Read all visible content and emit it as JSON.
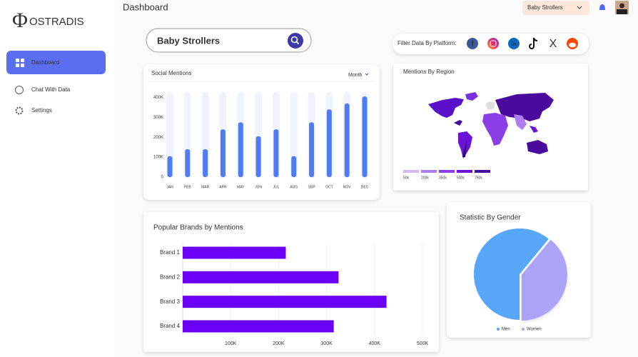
{
  "app": {
    "logo_symbol": "Φ",
    "logo_text": "OSTRADIS",
    "nav": [
      "Dashboard",
      "Chat With Data",
      "Settings"
    ],
    "header_title": "Dashboard",
    "product_select": "Baby Strollers",
    "search_query": "Baby Strollers",
    "filter_label": "Filter Data By Platform:",
    "platforms": [
      "f",
      "in",
      "X"
    ]
  },
  "chart_data": [
    {
      "type": "bar",
      "title": "Social Mentions",
      "period": "Month",
      "categories": [
        "JAN",
        "FEB",
        "MAR",
        "APR",
        "MAY",
        "JUN",
        "JUL",
        "AUG",
        "SEP",
        "OCT",
        "NOV",
        "DEC"
      ],
      "values": [
        105000,
        140000,
        140000,
        240000,
        275000,
        205000,
        240000,
        105000,
        275000,
        340000,
        370000,
        405000
      ],
      "color": "#4f7cf2",
      "ylim": [
        0,
        420000
      ],
      "yticks": [
        0,
        {
          "value": 100000,
          "label": "100K"
        },
        {
          "value": 200000,
          "label": "200K"
        },
        {
          "value": 300000,
          "label": "300K"
        },
        {
          "value": 400000,
          "label": "400K"
        }
      ]
    },
    {
      "type": "map",
      "title": "Mentions By Region",
      "legend": {
        "labels": [
          "50k",
          "200k",
          "350k",
          "500k",
          "750k"
        ],
        "colors": [
          "#d7b8f7",
          "#b07cf0",
          "#8a3fe6",
          "#6a12d6",
          "#4a0a9c"
        ]
      }
    },
    {
      "type": "hbar",
      "title": "Popular Brands by Mentions",
      "categories": [
        "Brand 1",
        "Brand 2",
        "Brand 3",
        "Brand 4"
      ],
      "values": [
        215000,
        325000,
        425000,
        315000
      ],
      "color": "#6a00f4",
      "xlim": [
        0,
        500000
      ],
      "xticks": [
        {
          "value": 100000,
          "label": "100K"
        },
        {
          "value": 200000,
          "label": "200K"
        },
        {
          "value": 300000,
          "label": "300K"
        },
        {
          "value": 400000,
          "label": "400K"
        },
        {
          "value": 500000,
          "label": "500K"
        }
      ]
    },
    {
      "type": "pie",
      "title": "Statistic By Gender",
      "categories": [
        "Men",
        "Women"
      ],
      "values": [
        61,
        39
      ],
      "colors": [
        "#58a6f8",
        "#aaa3f6"
      ]
    }
  ]
}
